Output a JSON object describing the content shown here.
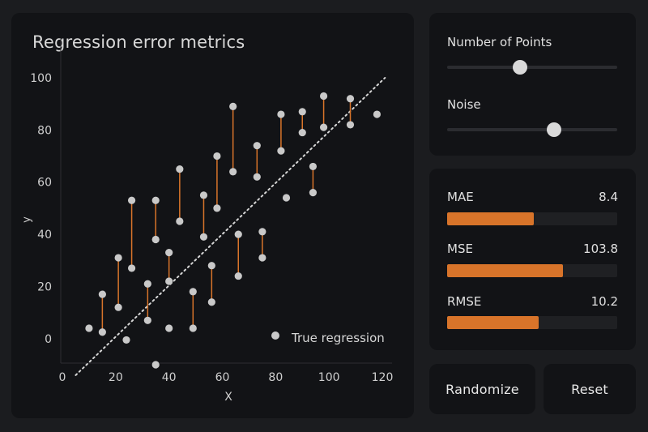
{
  "chart": {
    "title": "Regression error metrics",
    "legend_label": "True regression",
    "colors": {
      "point": "#c9c9c9",
      "residual": "#d8742a",
      "line": "#d6d6d6",
      "text": "#cfcfcf"
    }
  },
  "chart_data": {
    "type": "scatter",
    "title": "Regression error metrics",
    "xlabel": "X",
    "ylabel": "y",
    "xlim": [
      0,
      120
    ],
    "ylim": [
      -10,
      100
    ],
    "xticks": [
      0,
      20,
      40,
      60,
      80,
      100,
      120
    ],
    "yticks": [
      0,
      20,
      40,
      60,
      80,
      100
    ],
    "regression_line": {
      "from": [
        5,
        -14
      ],
      "to": [
        121,
        100
      ],
      "style": "dotted"
    },
    "legend": {
      "entries": [
        "True regression"
      ],
      "position": "bottom-right"
    },
    "points": [
      {
        "x": 10,
        "y": 4,
        "residual": false
      },
      {
        "x": 15,
        "y": 2.5,
        "residual": false
      },
      {
        "x": 15,
        "y": 17,
        "residual": true
      },
      {
        "x": 21,
        "y": 31,
        "residual": true
      },
      {
        "x": 21,
        "y": 12,
        "residual": false
      },
      {
        "x": 24,
        "y": -0.5,
        "residual": false
      },
      {
        "x": 26,
        "y": 53,
        "residual": true
      },
      {
        "x": 26,
        "y": 27,
        "residual": false
      },
      {
        "x": 32,
        "y": 21,
        "residual": true
      },
      {
        "x": 32,
        "y": 7,
        "residual": false
      },
      {
        "x": 35,
        "y": 53,
        "residual": true
      },
      {
        "x": 35,
        "y": 38,
        "residual": false
      },
      {
        "x": 35,
        "y": -10,
        "residual": false
      },
      {
        "x": 40,
        "y": 33,
        "residual": true
      },
      {
        "x": 40,
        "y": 22,
        "residual": false
      },
      {
        "x": 40,
        "y": 4,
        "residual": false
      },
      {
        "x": 44,
        "y": 65,
        "residual": true
      },
      {
        "x": 44,
        "y": 45,
        "residual": false
      },
      {
        "x": 49,
        "y": 18,
        "residual": true
      },
      {
        "x": 49,
        "y": 4,
        "residual": false
      },
      {
        "x": 53,
        "y": 55,
        "residual": true
      },
      {
        "x": 53,
        "y": 39,
        "residual": false
      },
      {
        "x": 56,
        "y": 28,
        "residual": true
      },
      {
        "x": 56,
        "y": 14,
        "residual": false
      },
      {
        "x": 58,
        "y": 70,
        "residual": true
      },
      {
        "x": 58,
        "y": 50,
        "residual": false
      },
      {
        "x": 64,
        "y": 89,
        "residual": true
      },
      {
        "x": 64,
        "y": 64,
        "residual": false
      },
      {
        "x": 66,
        "y": 40,
        "residual": true
      },
      {
        "x": 66,
        "y": 24,
        "residual": false
      },
      {
        "x": 73,
        "y": 74,
        "residual": true
      },
      {
        "x": 73,
        "y": 62,
        "residual": false
      },
      {
        "x": 75,
        "y": 41,
        "residual": true
      },
      {
        "x": 75,
        "y": 31,
        "residual": false
      },
      {
        "x": 82,
        "y": 86,
        "residual": true
      },
      {
        "x": 82,
        "y": 72,
        "residual": false
      },
      {
        "x": 84,
        "y": 54,
        "residual": false
      },
      {
        "x": 90,
        "y": 87,
        "residual": true
      },
      {
        "x": 90,
        "y": 79,
        "residual": false
      },
      {
        "x": 94,
        "y": 66,
        "residual": true
      },
      {
        "x": 94,
        "y": 56,
        "residual": false
      },
      {
        "x": 98,
        "y": 93,
        "residual": true
      },
      {
        "x": 98,
        "y": 81,
        "residual": false
      },
      {
        "x": 108,
        "y": 92,
        "residual": true
      },
      {
        "x": 108,
        "y": 82,
        "residual": false
      },
      {
        "x": 118,
        "y": 86,
        "residual": false
      }
    ],
    "residual_segments": [
      [
        15,
        17,
        2.5
      ],
      [
        21,
        31,
        12
      ],
      [
        26,
        53,
        27
      ],
      [
        32,
        21,
        7
      ],
      [
        35,
        53,
        38
      ],
      [
        40,
        33,
        22
      ],
      [
        44,
        65,
        45
      ],
      [
        49,
        18,
        4
      ],
      [
        53,
        55,
        39
      ],
      [
        56,
        28,
        14
      ],
      [
        58,
        70,
        50
      ],
      [
        64,
        89,
        64
      ],
      [
        66,
        40,
        24
      ],
      [
        73,
        74,
        62
      ],
      [
        75,
        41,
        31
      ],
      [
        82,
        86,
        72
      ],
      [
        90,
        87,
        79
      ],
      [
        94,
        66,
        56
      ],
      [
        98,
        93,
        81
      ],
      [
        108,
        92,
        82
      ]
    ]
  },
  "controls": {
    "points": {
      "label": "Number of Points",
      "value_fraction": 0.43
    },
    "noise": {
      "label": "Noise",
      "value_fraction": 0.63
    }
  },
  "metrics": {
    "max_value": 150,
    "items": [
      {
        "key": "mae",
        "label": "MAE",
        "value": "8.4",
        "fill_fraction": 0.51
      },
      {
        "key": "mse",
        "label": "MSE",
        "value": "103.8",
        "fill_fraction": 0.68
      },
      {
        "key": "rmse",
        "label": "RMSE",
        "value": "10.2",
        "fill_fraction": 0.54
      }
    ]
  },
  "buttons": {
    "randomize": "Randomize",
    "reset": "Reset"
  }
}
